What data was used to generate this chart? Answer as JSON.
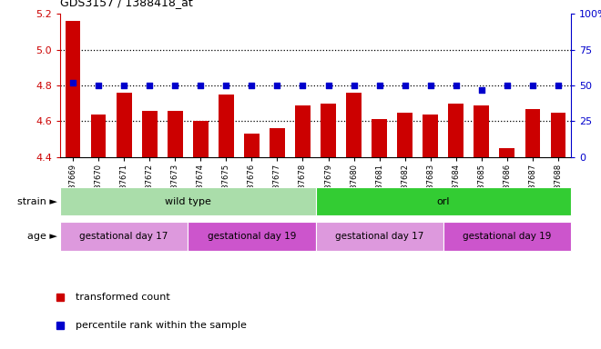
{
  "title": "GDS3157 / 1388418_at",
  "samples": [
    "GSM187669",
    "GSM187670",
    "GSM187671",
    "GSM187672",
    "GSM187673",
    "GSM187674",
    "GSM187675",
    "GSM187676",
    "GSM187677",
    "GSM187678",
    "GSM187679",
    "GSM187680",
    "GSM187681",
    "GSM187682",
    "GSM187683",
    "GSM187684",
    "GSM187685",
    "GSM187686",
    "GSM187687",
    "GSM187688"
  ],
  "bar_values": [
    5.16,
    4.64,
    4.76,
    4.66,
    4.66,
    4.6,
    4.75,
    4.53,
    4.56,
    4.69,
    4.7,
    4.76,
    4.61,
    4.65,
    4.64,
    4.7,
    4.69,
    4.45,
    4.67,
    4.65
  ],
  "percentile_values": [
    52,
    50,
    50,
    50,
    50,
    50,
    50,
    50,
    50,
    50,
    50,
    50,
    50,
    50,
    50,
    50,
    47,
    50,
    50,
    50
  ],
  "ylim_left": [
    4.4,
    5.2
  ],
  "ylim_right": [
    0,
    100
  ],
  "yticks_left": [
    4.4,
    4.6,
    4.8,
    5.0,
    5.2
  ],
  "yticks_right": [
    0,
    25,
    50,
    75,
    100
  ],
  "ytick_right_labels": [
    "0",
    "25",
    "50",
    "75",
    "100%"
  ],
  "hlines": [
    4.6,
    4.8,
    5.0
  ],
  "bar_color": "#cc0000",
  "dot_color": "#0000cc",
  "bar_width": 0.6,
  "strain_groups": [
    {
      "name": "wild type",
      "start": 0,
      "end": 9,
      "color": "#aaddaa"
    },
    {
      "name": "orl",
      "start": 10,
      "end": 19,
      "color": "#33cc33"
    }
  ],
  "age_groups": [
    {
      "name": "gestational day 17",
      "start": 0,
      "end": 4,
      "color": "#dd99dd"
    },
    {
      "name": "gestational day 19",
      "start": 5,
      "end": 9,
      "color": "#cc55cc"
    },
    {
      "name": "gestational day 17",
      "start": 10,
      "end": 14,
      "color": "#dd99dd"
    },
    {
      "name": "gestational day 19",
      "start": 15,
      "end": 19,
      "color": "#cc55cc"
    }
  ],
  "left_axis_color": "#cc0000",
  "right_axis_color": "#0000cc"
}
